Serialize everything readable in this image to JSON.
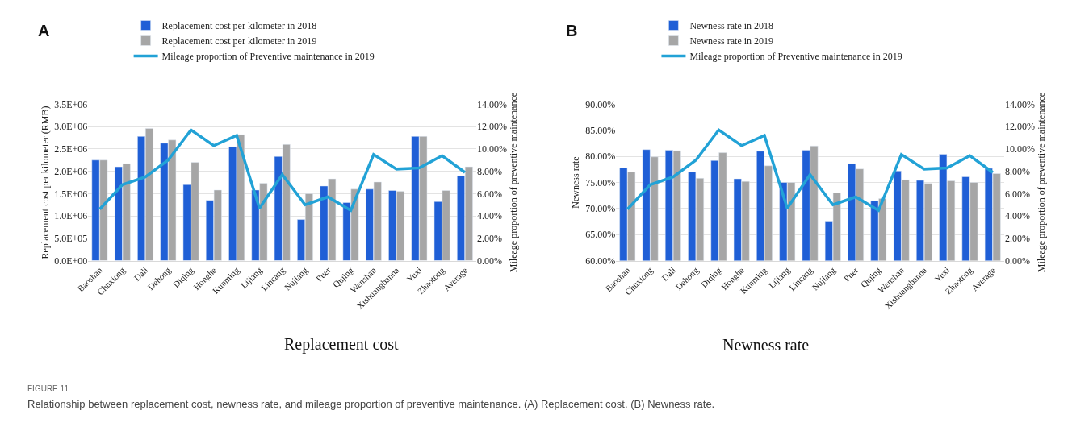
{
  "chart_data": [
    {
      "type": "bar",
      "title": "Replacement cost",
      "ylabel": "Replacement cost per kilometer (RMB)",
      "y2label": "Mileage proportion of preventive maintenance",
      "annotations": [
        "A",
        "FIGURE 11",
        "Relationship between replacement cost, newness rate, and mileage proportion of preventive maintenance. (A) Replacement cost. (B) Newness rate."
      ],
      "categories": [
        "Baoshan",
        "Chuxiong",
        "Dali",
        "Dehong",
        "Diqing",
        "Honghe",
        "Kunming",
        "Lijiang",
        "Lincang",
        "Nujiang",
        "Puer",
        "Qujing",
        "Wenshan",
        "Xishuangbanna",
        "Yuxi",
        "Zhaotong",
        "Average"
      ],
      "series": [
        {
          "name": "Replacement cost per kilometer in 2018",
          "color": "#1f5fd6",
          "values": [
            2250000,
            2100000,
            2780000,
            2630000,
            1700000,
            1350000,
            2550000,
            1580000,
            2330000,
            920000,
            1670000,
            1300000,
            1600000,
            1570000,
            2780000,
            1320000,
            1900000
          ]
        },
        {
          "name": "Replacement cost per kilometer in 2019",
          "color": "#a6a6a6",
          "values": [
            2250000,
            2170000,
            2960000,
            2700000,
            2200000,
            1580000,
            2820000,
            1730000,
            2600000,
            1500000,
            1830000,
            1600000,
            1760000,
            1550000,
            2780000,
            1570000,
            2100000
          ]
        },
        {
          "name": "Mileage proportion of Preventive maintenance in 2019",
          "type": "line",
          "axis": "y2",
          "color": "#22a2d6",
          "values": [
            4.6,
            6.8,
            7.5,
            9.0,
            11.7,
            10.3,
            11.2,
            4.7,
            7.7,
            5.0,
            5.7,
            4.5,
            9.5,
            8.2,
            8.3,
            9.4,
            7.9
          ]
        }
      ],
      "ylim": [
        0,
        3500000
      ],
      "yticks": [
        {
          "value": 0,
          "label": "0.0E+00"
        },
        {
          "value": 500000,
          "label": "5.0E+05"
        },
        {
          "value": 1000000,
          "label": "1.0E+06"
        },
        {
          "value": 1500000,
          "label": "1.5E+06"
        },
        {
          "value": 2000000,
          "label": "2.0E+06"
        },
        {
          "value": 2500000,
          "label": "2.5E+06"
        },
        {
          "value": 3000000,
          "label": "3.0E+06"
        },
        {
          "value": 3500000,
          "label": "3.5E+06"
        }
      ],
      "y2lim": [
        0,
        14
      ],
      "y2ticks": [
        {
          "value": 0,
          "label": "0.00%"
        },
        {
          "value": 2,
          "label": "2.00%"
        },
        {
          "value": 4,
          "label": "4.00%"
        },
        {
          "value": 6,
          "label": "6.00%"
        },
        {
          "value": 8,
          "label": "8.00%"
        },
        {
          "value": 10,
          "label": "10.00%"
        },
        {
          "value": 12,
          "label": "12.00%"
        },
        {
          "value": 14,
          "label": "14.00%"
        }
      ],
      "grid": "y",
      "legend": "top",
      "marker": "none"
    },
    {
      "type": "bar",
      "title": "Newness rate",
      "ylabel": "Newness rate",
      "y2label": "Mileage proportion of preventive maintenance",
      "annotations": [
        "B"
      ],
      "categories": [
        "Baoshan",
        "Chuxiong",
        "Dali",
        "Dehong",
        "Diqing",
        "Honghe",
        "Kunming",
        "Lijiang",
        "Lincang",
        "Nujiang",
        "Puer",
        "Qujing",
        "Wenshan",
        "Xishuangbanna",
        "Yuxi",
        "Zhaotong",
        "Average"
      ],
      "series": [
        {
          "name": "Newness rate in 2018",
          "color": "#1f5fd6",
          "values": [
            77.8,
            81.3,
            81.2,
            77.0,
            79.2,
            75.7,
            81.0,
            75.0,
            81.2,
            67.6,
            78.6,
            71.5,
            77.2,
            75.4,
            80.4,
            76.1,
            77.7
          ]
        },
        {
          "name": "Newness rate in 2019",
          "color": "#a6a6a6",
          "values": [
            77.0,
            79.9,
            81.1,
            75.8,
            80.7,
            75.2,
            78.2,
            75.0,
            82.0,
            73.0,
            77.6,
            71.9,
            75.5,
            74.8,
            75.3,
            75.0,
            76.7
          ]
        },
        {
          "name": "Mileage proportion of Preventive maintenance in 2019",
          "type": "line",
          "axis": "y2",
          "color": "#22a2d6",
          "values": [
            4.6,
            6.8,
            7.5,
            9.0,
            11.7,
            10.3,
            11.2,
            4.7,
            7.7,
            5.0,
            5.7,
            4.5,
            9.5,
            8.2,
            8.3,
            9.4,
            7.9
          ]
        }
      ],
      "ylim": [
        60,
        90
      ],
      "yticks": [
        {
          "value": 60,
          "label": "60.00%"
        },
        {
          "value": 65,
          "label": "65.00%"
        },
        {
          "value": 70,
          "label": "70.00%"
        },
        {
          "value": 75,
          "label": "75.00%"
        },
        {
          "value": 80,
          "label": "80.00%"
        },
        {
          "value": 85,
          "label": "85.00%"
        },
        {
          "value": 90,
          "label": "90.00%"
        }
      ],
      "y2lim": [
        0,
        14
      ],
      "y2ticks": [
        {
          "value": 0,
          "label": "0.00%"
        },
        {
          "value": 2,
          "label": "2.00%"
        },
        {
          "value": 4,
          "label": "4.00%"
        },
        {
          "value": 6,
          "label": "6.00%"
        },
        {
          "value": 8,
          "label": "8.00%"
        },
        {
          "value": 10,
          "label": "10.00%"
        },
        {
          "value": 12,
          "label": "12.00%"
        },
        {
          "value": 14,
          "label": "14.00%"
        }
      ],
      "grid": "y",
      "legend": "top",
      "marker": "none"
    }
  ]
}
